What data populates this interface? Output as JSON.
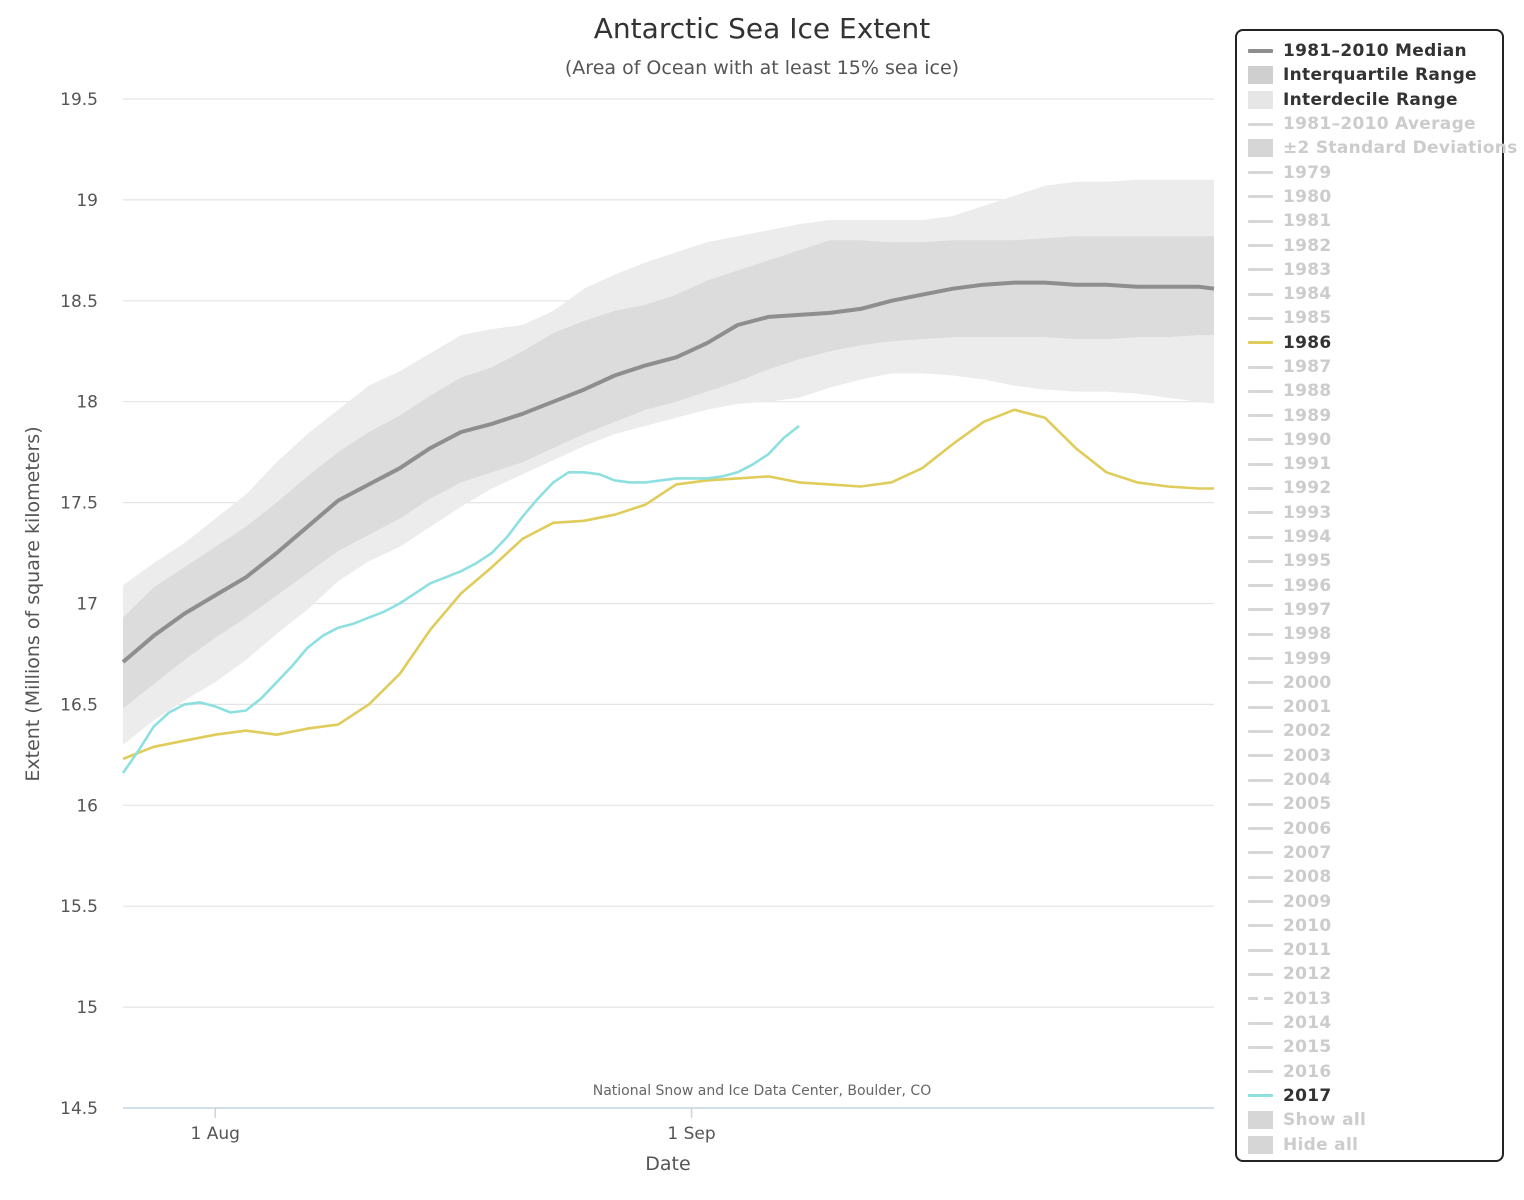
{
  "chart_data": {
    "type": "line",
    "title": "Antarctic Sea Ice Extent",
    "subtitle": "(Area of Ocean with at least 15% sea ice)",
    "xlabel": "Date",
    "ylabel": "Extent (Millions of square kilometers)",
    "credit": "National Snow and Ice Data Center, Boulder, CO",
    "x_start": "2017-07-26",
    "x_end": "2017-10-05",
    "x_ticks": [
      {
        "date": "2017-08-01",
        "label": "1 Aug"
      },
      {
        "date": "2017-09-01",
        "label": "1 Sep"
      }
    ],
    "ylim": [
      14.5,
      19.5
    ],
    "y_ticks": [
      "14.5",
      "15",
      "15.5",
      "16",
      "16.5",
      "17",
      "17.5",
      "18",
      "18.5",
      "19",
      "19.5"
    ],
    "grid": true,
    "legend_position": "right",
    "colors": {
      "median": "#8e8e8e",
      "interquartile": "#dcdcdc",
      "interdecile": "#ececec",
      "y1986": "#e0cc5a",
      "y2017": "#8ee0e0",
      "inactive": "#cfcfcf",
      "grid": "#e4e4e4"
    },
    "x_dates": [
      "2017-07-26",
      "2017-07-28",
      "2017-07-30",
      "2017-08-01",
      "2017-08-03",
      "2017-08-05",
      "2017-08-07",
      "2017-08-09",
      "2017-08-11",
      "2017-08-13",
      "2017-08-15",
      "2017-08-17",
      "2017-08-19",
      "2017-08-21",
      "2017-08-23",
      "2017-08-25",
      "2017-08-27",
      "2017-08-29",
      "2017-08-31",
      "2017-09-02",
      "2017-09-04",
      "2017-09-06",
      "2017-09-08",
      "2017-09-10",
      "2017-09-12",
      "2017-09-14",
      "2017-09-16",
      "2017-09-18",
      "2017-09-20",
      "2017-09-22",
      "2017-09-24",
      "2017-09-26",
      "2017-09-28",
      "2017-09-30",
      "2017-10-02",
      "2017-10-04",
      "2017-10-05"
    ],
    "median": [
      16.71,
      16.84,
      16.95,
      17.04,
      17.13,
      17.25,
      17.38,
      17.51,
      17.59,
      17.67,
      17.77,
      17.85,
      17.89,
      17.94,
      18.0,
      18.06,
      18.13,
      18.18,
      18.22,
      18.29,
      18.38,
      18.42,
      18.43,
      18.44,
      18.46,
      18.5,
      18.53,
      18.56,
      18.58,
      18.59,
      18.59,
      18.58,
      18.58,
      18.57,
      18.57,
      18.57,
      18.56
    ],
    "interquartile_low": [
      16.48,
      16.6,
      16.72,
      16.83,
      16.93,
      17.04,
      17.15,
      17.26,
      17.34,
      17.42,
      17.52,
      17.6,
      17.65,
      17.7,
      17.77,
      17.84,
      17.9,
      17.96,
      18.0,
      18.05,
      18.1,
      18.16,
      18.21,
      18.25,
      18.28,
      18.3,
      18.31,
      18.32,
      18.32,
      18.32,
      18.32,
      18.31,
      18.31,
      18.32,
      18.32,
      18.33,
      18.33
    ],
    "interquartile_high": [
      16.93,
      17.08,
      17.18,
      17.28,
      17.38,
      17.5,
      17.63,
      17.75,
      17.85,
      17.93,
      18.03,
      18.12,
      18.17,
      18.25,
      18.34,
      18.4,
      18.45,
      18.48,
      18.53,
      18.6,
      18.65,
      18.7,
      18.75,
      18.8,
      18.8,
      18.79,
      18.79,
      18.8,
      18.8,
      18.8,
      18.81,
      18.82,
      18.82,
      18.82,
      18.82,
      18.82,
      18.82
    ],
    "interdecile_low": [
      16.3,
      16.42,
      16.52,
      16.61,
      16.72,
      16.85,
      16.97,
      17.11,
      17.21,
      17.28,
      17.38,
      17.48,
      17.57,
      17.64,
      17.71,
      17.78,
      17.84,
      17.88,
      17.92,
      17.96,
      17.99,
      18.0,
      18.02,
      18.07,
      18.11,
      18.14,
      18.14,
      18.13,
      18.11,
      18.08,
      18.06,
      18.05,
      18.05,
      18.04,
      18.02,
      18.0,
      17.99
    ],
    "interdecile_high": [
      17.09,
      17.2,
      17.3,
      17.42,
      17.54,
      17.7,
      17.84,
      17.96,
      18.08,
      18.15,
      18.24,
      18.33,
      18.36,
      18.38,
      18.45,
      18.56,
      18.63,
      18.69,
      18.74,
      18.79,
      18.82,
      18.85,
      18.88,
      18.9,
      18.9,
      18.9,
      18.9,
      18.92,
      18.97,
      19.02,
      19.07,
      19.09,
      19.09,
      19.1,
      19.1,
      19.1,
      19.1
    ],
    "y1986_dates": [
      "2017-07-26",
      "2017-07-28",
      "2017-07-30",
      "2017-08-01",
      "2017-08-03",
      "2017-08-05",
      "2017-08-07",
      "2017-08-09",
      "2017-08-11",
      "2017-08-13",
      "2017-08-15",
      "2017-08-17",
      "2017-08-19",
      "2017-08-21",
      "2017-08-23",
      "2017-08-25",
      "2017-08-27",
      "2017-08-29",
      "2017-08-31",
      "2017-09-02",
      "2017-09-04",
      "2017-09-06",
      "2017-09-08",
      "2017-09-10",
      "2017-09-12",
      "2017-09-14",
      "2017-09-16",
      "2017-09-18",
      "2017-09-20",
      "2017-09-22",
      "2017-09-24",
      "2017-09-26",
      "2017-09-28",
      "2017-09-30",
      "2017-10-02",
      "2017-10-04",
      "2017-10-05"
    ],
    "y1986": [
      16.23,
      16.29,
      16.32,
      16.35,
      16.37,
      16.35,
      16.38,
      16.4,
      16.5,
      16.65,
      16.87,
      17.05,
      17.18,
      17.32,
      17.4,
      17.41,
      17.44,
      17.49,
      17.59,
      17.61,
      17.62,
      17.63,
      17.6,
      17.59,
      17.58,
      17.6,
      17.67,
      17.79,
      17.9,
      17.96,
      17.92,
      17.77,
      17.65,
      17.6,
      17.58,
      17.57,
      17.57
    ],
    "y2017_dates": [
      "2017-07-26",
      "2017-07-27",
      "2017-07-28",
      "2017-07-29",
      "2017-07-30",
      "2017-07-31",
      "2017-08-01",
      "2017-08-02",
      "2017-08-03",
      "2017-08-04",
      "2017-08-05",
      "2017-08-06",
      "2017-08-07",
      "2017-08-08",
      "2017-08-09",
      "2017-08-10",
      "2017-08-11",
      "2017-08-12",
      "2017-08-13",
      "2017-08-14",
      "2017-08-15",
      "2017-08-16",
      "2017-08-17",
      "2017-08-18",
      "2017-08-19",
      "2017-08-20",
      "2017-08-21",
      "2017-08-22",
      "2017-08-23",
      "2017-08-24",
      "2017-08-25",
      "2017-08-26",
      "2017-08-27",
      "2017-08-28",
      "2017-08-29",
      "2017-08-30",
      "2017-08-31",
      "2017-09-01",
      "2017-09-02",
      "2017-09-03",
      "2017-09-04",
      "2017-09-05",
      "2017-09-06",
      "2017-09-07",
      "2017-09-08"
    ],
    "y2017": [
      16.16,
      16.27,
      16.39,
      16.46,
      16.5,
      16.51,
      16.49,
      16.46,
      16.47,
      16.53,
      16.61,
      16.69,
      16.78,
      16.84,
      16.88,
      16.9,
      16.93,
      16.96,
      17.0,
      17.05,
      17.1,
      17.13,
      17.16,
      17.2,
      17.25,
      17.33,
      17.43,
      17.52,
      17.6,
      17.65,
      17.65,
      17.64,
      17.61,
      17.6,
      17.6,
      17.61,
      17.62,
      17.62,
      17.62,
      17.63,
      17.65,
      17.69,
      17.74,
      17.82,
      17.88
    ]
  },
  "legend": {
    "items": [
      {
        "label": "1981–2010 Median",
        "swatch": "line",
        "color": "#8e8e8e",
        "active": true
      },
      {
        "label": "Interquartile Range",
        "swatch": "box",
        "color": "#cfcfcf",
        "active": true
      },
      {
        "label": "Interdecile Range",
        "swatch": "box",
        "color": "#e6e6e6",
        "active": true
      },
      {
        "label": "1981–2010 Average",
        "swatch": "line",
        "color": "#d6d6d6",
        "active": false
      },
      {
        "label": "±2 Standard Deviations",
        "swatch": "box",
        "color": "#d6d6d6",
        "active": false
      },
      {
        "label": "1979",
        "swatch": "line",
        "color": "#d6d6d6",
        "active": false
      },
      {
        "label": "1980",
        "swatch": "line",
        "color": "#d6d6d6",
        "active": false
      },
      {
        "label": "1981",
        "swatch": "line",
        "color": "#d6d6d6",
        "active": false
      },
      {
        "label": "1982",
        "swatch": "line",
        "color": "#d6d6d6",
        "active": false
      },
      {
        "label": "1983",
        "swatch": "line",
        "color": "#d6d6d6",
        "active": false
      },
      {
        "label": "1984",
        "swatch": "line",
        "color": "#d6d6d6",
        "active": false
      },
      {
        "label": "1985",
        "swatch": "line",
        "color": "#d6d6d6",
        "active": false
      },
      {
        "label": "1986",
        "swatch": "line",
        "color": "#e0cc5a",
        "active": true
      },
      {
        "label": "1987",
        "swatch": "line",
        "color": "#d6d6d6",
        "active": false
      },
      {
        "label": "1988",
        "swatch": "line",
        "color": "#d6d6d6",
        "active": false
      },
      {
        "label": "1989",
        "swatch": "line",
        "color": "#d6d6d6",
        "active": false
      },
      {
        "label": "1990",
        "swatch": "line",
        "color": "#d6d6d6",
        "active": false
      },
      {
        "label": "1991",
        "swatch": "line",
        "color": "#d6d6d6",
        "active": false
      },
      {
        "label": "1992",
        "swatch": "line",
        "color": "#d6d6d6",
        "active": false
      },
      {
        "label": "1993",
        "swatch": "line",
        "color": "#d6d6d6",
        "active": false
      },
      {
        "label": "1994",
        "swatch": "line",
        "color": "#d6d6d6",
        "active": false
      },
      {
        "label": "1995",
        "swatch": "line",
        "color": "#d6d6d6",
        "active": false
      },
      {
        "label": "1996",
        "swatch": "line",
        "color": "#d6d6d6",
        "active": false
      },
      {
        "label": "1997",
        "swatch": "line",
        "color": "#d6d6d6",
        "active": false
      },
      {
        "label": "1998",
        "swatch": "line",
        "color": "#d6d6d6",
        "active": false
      },
      {
        "label": "1999",
        "swatch": "line",
        "color": "#d6d6d6",
        "active": false
      },
      {
        "label": "2000",
        "swatch": "line",
        "color": "#d6d6d6",
        "active": false
      },
      {
        "label": "2001",
        "swatch": "line",
        "color": "#d6d6d6",
        "active": false
      },
      {
        "label": "2002",
        "swatch": "line",
        "color": "#d6d6d6",
        "active": false
      },
      {
        "label": "2003",
        "swatch": "line",
        "color": "#d6d6d6",
        "active": false
      },
      {
        "label": "2004",
        "swatch": "line",
        "color": "#d6d6d6",
        "active": false
      },
      {
        "label": "2005",
        "swatch": "line",
        "color": "#d6d6d6",
        "active": false
      },
      {
        "label": "2006",
        "swatch": "line",
        "color": "#d6d6d6",
        "active": false
      },
      {
        "label": "2007",
        "swatch": "line",
        "color": "#d6d6d6",
        "active": false
      },
      {
        "label": "2008",
        "swatch": "line",
        "color": "#d6d6d6",
        "active": false
      },
      {
        "label": "2009",
        "swatch": "line",
        "color": "#d6d6d6",
        "active": false
      },
      {
        "label": "2010",
        "swatch": "line",
        "color": "#d6d6d6",
        "active": false
      },
      {
        "label": "2011",
        "swatch": "line",
        "color": "#d6d6d6",
        "active": false
      },
      {
        "label": "2012",
        "swatch": "line",
        "color": "#d6d6d6",
        "active": false
      },
      {
        "label": "2013",
        "swatch": "dash",
        "color": "#d6d6d6",
        "active": false
      },
      {
        "label": "2014",
        "swatch": "line",
        "color": "#d6d6d6",
        "active": false
      },
      {
        "label": "2015",
        "swatch": "line",
        "color": "#d6d6d6",
        "active": false
      },
      {
        "label": "2016",
        "swatch": "line",
        "color": "#d6d6d6",
        "active": false
      },
      {
        "label": "2017",
        "swatch": "line",
        "color": "#8ee0e0",
        "active": true
      },
      {
        "label": "Show all",
        "swatch": "box",
        "color": "#d6d6d6",
        "active": false
      },
      {
        "label": "Hide all",
        "swatch": "box",
        "color": "#d6d6d6",
        "active": false
      }
    ]
  }
}
